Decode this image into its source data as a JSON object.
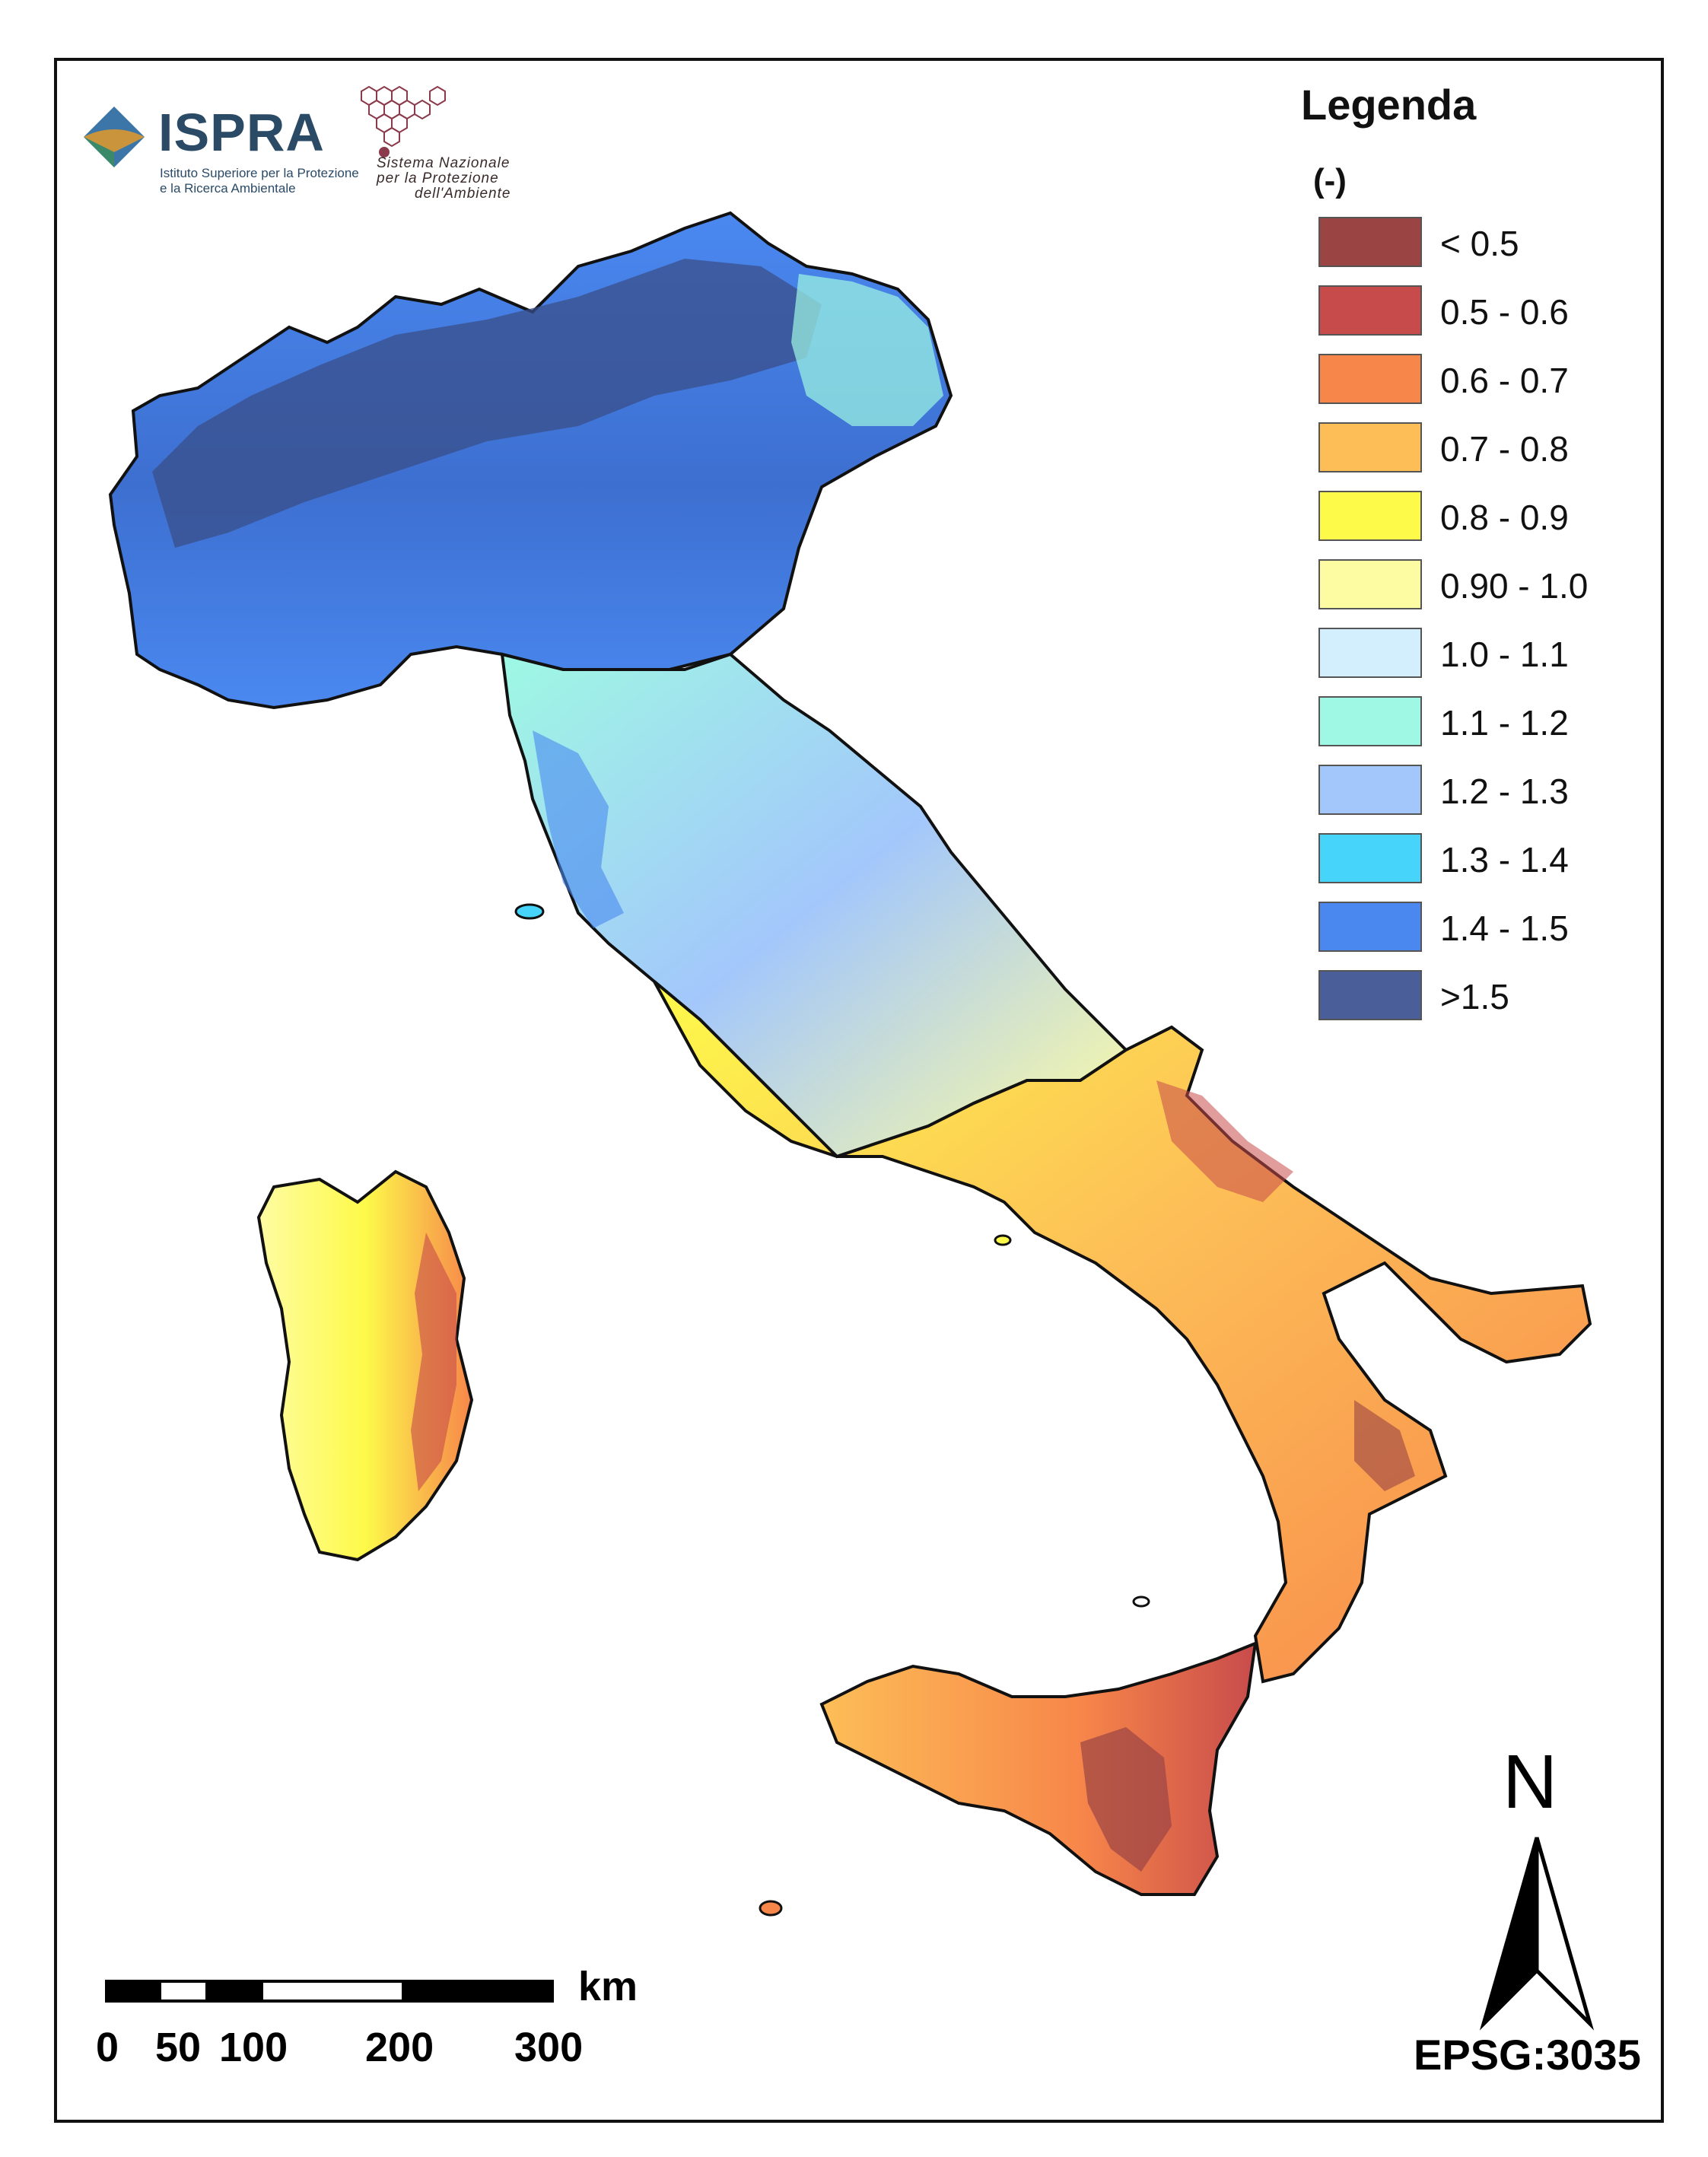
{
  "logos": {
    "ispra": {
      "name": "ISPRA",
      "line1": "Istituto Superiore per la Protezione",
      "line2": "e la Ricerca Ambientale"
    },
    "snpa": {
      "line1": "Sistema Nazionale",
      "line2": "per la Protezione",
      "line3": "dell'Ambiente"
    }
  },
  "legend": {
    "title": "Legenda",
    "unit": "(-)",
    "items": [
      {
        "label": "<  0.5",
        "color": "#9b4444"
      },
      {
        "label": "0.5 - 0.6",
        "color": "#c84b4b"
      },
      {
        "label": "0.6 - 0.7",
        "color": "#f7864a"
      },
      {
        "label": "0.7 - 0.8",
        "color": "#fdbe57"
      },
      {
        "label": "0.8 - 0.9",
        "color": "#fdfa4a"
      },
      {
        "label": "0.90 - 1.0",
        "color": "#fefca2"
      },
      {
        "label": "1.0 - 1.1",
        "color": "#d3eefc"
      },
      {
        "label": "1.1 - 1.2",
        "color": "#9ef8e3"
      },
      {
        "label": "1.2 - 1.3",
        "color": "#a3c7fb"
      },
      {
        "label": "1.3 - 1.4",
        "color": "#47d4fb"
      },
      {
        "label": "1.4 - 1.5",
        "color": "#4a88f0"
      },
      {
        "label": ">1.5",
        "color": "#4a5f9a"
      }
    ]
  },
  "scale_bar": {
    "unit": "km",
    "ticks": [
      "0",
      "50",
      "100",
      "200",
      "300"
    ]
  },
  "north_arrow": {
    "letter": "N"
  },
  "projection": "EPSG:3035"
}
